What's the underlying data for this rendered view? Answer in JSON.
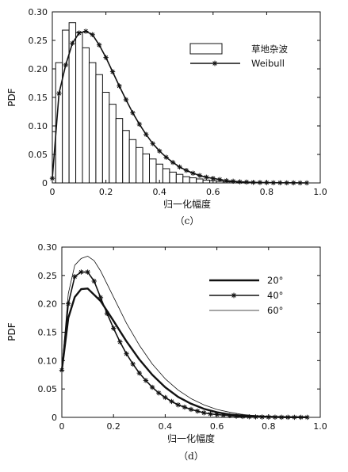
{
  "chart_data": [
    {
      "type": "bar",
      "xlabel": "归一化幅度",
      "ylabel": "PDF",
      "caption": "（c）",
      "xlim": [
        0,
        1.0
      ],
      "ylim": [
        0,
        0.3
      ],
      "xticks": [
        "0",
        "0.2",
        "0.4",
        "0.6",
        "0.8",
        "1.0"
      ],
      "yticks": [
        "0",
        "0.05",
        "0.10",
        "0.15",
        "0.20",
        "0.25",
        "0.30"
      ],
      "legend": {
        "position": "top-right",
        "entries": [
          "草地杂波",
          "Weibull"
        ]
      },
      "histogram": {
        "name": "草地杂波",
        "bin_width": 0.025,
        "x_start": -0.0125,
        "values": [
          0.09,
          0.211,
          0.268,
          0.281,
          0.264,
          0.237,
          0.211,
          0.19,
          0.159,
          0.138,
          0.113,
          0.092,
          0.076,
          0.062,
          0.051,
          0.042,
          0.033,
          0.025,
          0.019,
          0.015,
          0.011,
          0.009,
          0.007,
          0.005,
          0.004,
          0.003,
          0.002,
          0.002,
          0.001,
          0.001,
          0.001,
          0.0005,
          0.0005
        ]
      },
      "series": [
        {
          "name": "Weibull",
          "marker": "asterisk",
          "x": [
            0,
            0.025,
            0.05,
            0.075,
            0.1,
            0.125,
            0.15,
            0.175,
            0.2,
            0.225,
            0.25,
            0.275,
            0.3,
            0.325,
            0.35,
            0.375,
            0.4,
            0.425,
            0.45,
            0.475,
            0.5,
            0.525,
            0.55,
            0.575,
            0.6,
            0.625,
            0.65,
            0.675,
            0.7,
            0.725,
            0.75,
            0.775,
            0.8,
            0.825,
            0.85,
            0.875,
            0.9,
            0.925,
            0.95
          ],
          "y": [
            0.008,
            0.157,
            0.207,
            0.245,
            0.263,
            0.266,
            0.26,
            0.242,
            0.22,
            0.195,
            0.17,
            0.146,
            0.123,
            0.103,
            0.085,
            0.069,
            0.056,
            0.045,
            0.036,
            0.028,
            0.022,
            0.017,
            0.013,
            0.01,
            0.008,
            0.006,
            0.004,
            0.003,
            0.002,
            0.0015,
            0.001,
            0.0008,
            0.0006,
            0.0004,
            0.0003,
            0.0002,
            0.0002,
            0.0001,
            0.0001
          ]
        }
      ]
    },
    {
      "type": "line",
      "xlabel": "归一化幅度",
      "ylabel": "PDF",
      "caption": "（d）",
      "xlim": [
        0,
        1.0
      ],
      "ylim": [
        0,
        0.3
      ],
      "xticks": [
        "0",
        "0.2",
        "0.4",
        "0.6",
        "0.8",
        "1.0"
      ],
      "yticks": [
        "0",
        "0.05",
        "0.10",
        "0.15",
        "0.20",
        "0.25",
        "0.30"
      ],
      "legend": {
        "position": "top-right",
        "entries": [
          "20°",
          "40°",
          "60°"
        ]
      },
      "series": [
        {
          "name": "20°",
          "style": "thick",
          "x": [
            0,
            0.025,
            0.05,
            0.075,
            0.1,
            0.15,
            0.2,
            0.25,
            0.3,
            0.35,
            0.4,
            0.45,
            0.5,
            0.55,
            0.6,
            0.65,
            0.7,
            0.75,
            0.8,
            0.85,
            0.9,
            0.95
          ],
          "y": [
            0.083,
            0.175,
            0.212,
            0.226,
            0.227,
            0.205,
            0.17,
            0.134,
            0.102,
            0.075,
            0.053,
            0.036,
            0.024,
            0.015,
            0.009,
            0.005,
            0.003,
            0.002,
            0.001,
            0.0005,
            0.0003,
            0.0002
          ]
        },
        {
          "name": "40°",
          "style": "asterisk",
          "x": [
            0,
            0.025,
            0.05,
            0.075,
            0.1,
            0.125,
            0.15,
            0.175,
            0.2,
            0.225,
            0.25,
            0.275,
            0.3,
            0.325,
            0.35,
            0.375,
            0.4,
            0.425,
            0.45,
            0.475,
            0.5,
            0.525,
            0.55,
            0.575,
            0.6,
            0.625,
            0.65,
            0.675,
            0.7,
            0.725,
            0.75,
            0.775,
            0.8,
            0.825,
            0.85,
            0.875,
            0.9,
            0.925,
            0.95
          ],
          "y": [
            0.083,
            0.2,
            0.248,
            0.256,
            0.256,
            0.24,
            0.211,
            0.183,
            0.157,
            0.133,
            0.112,
            0.094,
            0.078,
            0.065,
            0.053,
            0.043,
            0.035,
            0.028,
            0.022,
            0.018,
            0.014,
            0.011,
            0.008,
            0.006,
            0.005,
            0.004,
            0.003,
            0.002,
            0.0015,
            0.001,
            0.0008,
            0.0006,
            0.0004,
            0.0003,
            0.0002,
            0.0002,
            0.0001,
            0.0001,
            0.0001
          ]
        },
        {
          "name": "60°",
          "style": "thin",
          "x": [
            0,
            0.025,
            0.05,
            0.075,
            0.1,
            0.125,
            0.15,
            0.2,
            0.25,
            0.3,
            0.35,
            0.4,
            0.45,
            0.5,
            0.55,
            0.6,
            0.65,
            0.7,
            0.75,
            0.8,
            0.85,
            0.9,
            0.95
          ],
          "y": [
            0.083,
            0.218,
            0.268,
            0.28,
            0.284,
            0.276,
            0.258,
            0.212,
            0.166,
            0.127,
            0.094,
            0.068,
            0.048,
            0.033,
            0.022,
            0.014,
            0.009,
            0.005,
            0.003,
            0.002,
            0.001,
            0.0005,
            0.0002
          ]
        }
      ]
    }
  ]
}
